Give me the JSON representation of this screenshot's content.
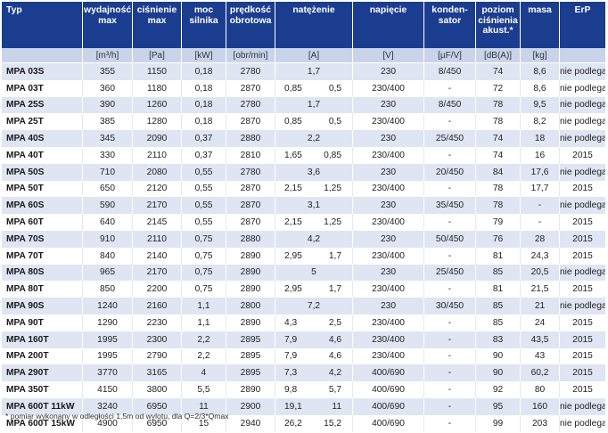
{
  "table": {
    "headers": {
      "typ": "Typ",
      "wydajnosc": "wydajność max",
      "cisnienie": "ciśnienie max",
      "moc": "moc silnika",
      "predkosc": "prędkość obrotowa",
      "natezenie": "natężenie",
      "napiecie": "napięcie",
      "kondensator": "konden-sator",
      "poziom": "poziom ciśnienia akust.*",
      "masa": "masa",
      "erp": "ErP"
    },
    "units": {
      "typ": "",
      "wydajnosc": "[m³/h]",
      "cisnienie": "[Pa]",
      "moc": "[kW]",
      "predkosc": "[obr/min]",
      "natezenie": "[A]",
      "napiecie": "[V]",
      "kondensator": "[µF/V]",
      "poziom": "[dB(A)]",
      "masa": "[kg]",
      "erp": ""
    },
    "rows": [
      {
        "typ": "MPA 03S",
        "wyd": "355",
        "cis": "1150",
        "moc": "0,18",
        "pred": "2780",
        "a1": "1,7",
        "a2": "",
        "nap": "230",
        "kon": "8/450",
        "poz": "74",
        "masa": "8,6",
        "erp": "nie podlega"
      },
      {
        "typ": "MPA 03T",
        "wyd": "360",
        "cis": "1180",
        "moc": "0,18",
        "pred": "2870",
        "a1": "0,85",
        "a2": "0,5",
        "nap": "230/400",
        "kon": "-",
        "poz": "72",
        "masa": "8,6",
        "erp": "nie podlega"
      },
      {
        "typ": "MPA 25S",
        "wyd": "390",
        "cis": "1260",
        "moc": "0,18",
        "pred": "2780",
        "a1": "1,7",
        "a2": "",
        "nap": "230",
        "kon": "8/450",
        "poz": "78",
        "masa": "9,5",
        "erp": "nie podlega"
      },
      {
        "typ": "MPA 25T",
        "wyd": "385",
        "cis": "1280",
        "moc": "0,18",
        "pred": "2870",
        "a1": "0,85",
        "a2": "0,5",
        "nap": "230/400",
        "kon": "-",
        "poz": "78",
        "masa": "8,2",
        "erp": "nie podlega"
      },
      {
        "typ": "MPA 40S",
        "wyd": "345",
        "cis": "2090",
        "moc": "0,37",
        "pred": "2880",
        "a1": "2,2",
        "a2": "",
        "nap": "230",
        "kon": "25/450",
        "poz": "74",
        "masa": "18",
        "erp": "nie podlega"
      },
      {
        "typ": "MPA 40T",
        "wyd": "330",
        "cis": "2110",
        "moc": "0,37",
        "pred": "2810",
        "a1": "1,65",
        "a2": "0,85",
        "nap": "230/400",
        "kon": "-",
        "poz": "74",
        "masa": "16",
        "erp": "2015"
      },
      {
        "typ": "MPA 50S",
        "wyd": "710",
        "cis": "2080",
        "moc": "0,55",
        "pred": "2780",
        "a1": "3,6",
        "a2": "",
        "nap": "230",
        "kon": "20/450",
        "poz": "84",
        "masa": "17,6",
        "erp": "nie podlega"
      },
      {
        "typ": "MPA 50T",
        "wyd": "650",
        "cis": "2120",
        "moc": "0,55",
        "pred": "2870",
        "a1": "2,15",
        "a2": "1,25",
        "nap": "230/400",
        "kon": "-",
        "poz": "78",
        "masa": "17,7",
        "erp": "2015"
      },
      {
        "typ": "MPA 60S",
        "wyd": "590",
        "cis": "2170",
        "moc": "0,55",
        "pred": "2870",
        "a1": "3,1",
        "a2": "",
        "nap": "230",
        "kon": "35/450",
        "poz": "78",
        "masa": "-",
        "erp": "nie podlega"
      },
      {
        "typ": "MPA 60T",
        "wyd": "640",
        "cis": "2145",
        "moc": "0,55",
        "pred": "2870",
        "a1": "2,15",
        "a2": "1,25",
        "nap": "230/400",
        "kon": "-",
        "poz": "79",
        "masa": "-",
        "erp": "2015"
      },
      {
        "typ": "MPA 70S",
        "wyd": "910",
        "cis": "2110",
        "moc": "0,75",
        "pred": "2880",
        "a1": "4,2",
        "a2": "",
        "nap": "230",
        "kon": "50/450",
        "poz": "76",
        "masa": "28",
        "erp": "2015"
      },
      {
        "typ": "MPA 70T",
        "wyd": "840",
        "cis": "2140",
        "moc": "0,75",
        "pred": "2890",
        "a1": "2,95",
        "a2": "1,7",
        "nap": "230/400",
        "kon": "-",
        "poz": "81",
        "masa": "24,3",
        "erp": "2015"
      },
      {
        "typ": "MPA 80S",
        "wyd": "965",
        "cis": "2170",
        "moc": "0,75",
        "pred": "2890",
        "a1": "5",
        "a2": "",
        "nap": "230",
        "kon": "25/450",
        "poz": "85",
        "masa": "20,5",
        "erp": "nie podlega"
      },
      {
        "typ": "MPA 80T",
        "wyd": "850",
        "cis": "2200",
        "moc": "0,75",
        "pred": "2890",
        "a1": "2,95",
        "a2": "1,7",
        "nap": "230/400",
        "kon": "-",
        "poz": "81",
        "masa": "21,5",
        "erp": "2015"
      },
      {
        "typ": "MPA 90S",
        "wyd": "1240",
        "cis": "2160",
        "moc": "1,1",
        "pred": "2800",
        "a1": "7,2",
        "a2": "",
        "nap": "230",
        "kon": "30/450",
        "poz": "85",
        "masa": "21",
        "erp": "nie podlega"
      },
      {
        "typ": "MPA 90T",
        "wyd": "1290",
        "cis": "2230",
        "moc": "1,1",
        "pred": "2890",
        "a1": "4,3",
        "a2": "2,5",
        "nap": "230/400",
        "kon": "-",
        "poz": "85",
        "masa": "24",
        "erp": "2015"
      },
      {
        "typ": "MPA 160T",
        "wyd": "1995",
        "cis": "2300",
        "moc": "2,2",
        "pred": "2895",
        "a1": "7,9",
        "a2": "4,6",
        "nap": "230/400",
        "kon": "-",
        "poz": "83",
        "masa": "43,5",
        "erp": "2015"
      },
      {
        "typ": "MPA 200T",
        "wyd": "1995",
        "cis": "2790",
        "moc": "2,2",
        "pred": "2895",
        "a1": "7,9",
        "a2": "4,6",
        "nap": "230/400",
        "kon": "-",
        "poz": "90",
        "masa": "43",
        "erp": "2015"
      },
      {
        "typ": "MPA 290T",
        "wyd": "3770",
        "cis": "3165",
        "moc": "4",
        "pred": "2895",
        "a1": "7,3",
        "a2": "4,2",
        "nap": "400/690",
        "kon": "-",
        "poz": "90",
        "masa": "60,2",
        "erp": "2015"
      },
      {
        "typ": "MPA 350T",
        "wyd": "4150",
        "cis": "3800",
        "moc": "5,5",
        "pred": "2890",
        "a1": "9,8",
        "a2": "5,7",
        "nap": "400/690",
        "kon": "-",
        "poz": "92",
        "masa": "80",
        "erp": "2015"
      },
      {
        "typ": "MPA 600T 11kW",
        "wyd": "3240",
        "cis": "6950",
        "moc": "11",
        "pred": "2900",
        "a1": "19,1",
        "a2": "11",
        "nap": "400/690",
        "kon": "-",
        "poz": "95",
        "masa": "160",
        "erp": "nie podlega"
      },
      {
        "typ": "MPA 600T 15kW",
        "wyd": "4900",
        "cis": "6950",
        "moc": "15",
        "pred": "2940",
        "a1": "26,2",
        "a2": "15,2",
        "nap": "400/690",
        "kon": "-",
        "poz": "99",
        "masa": "203",
        "erp": "nie podlega"
      }
    ]
  },
  "footnote": "* pomiar wykonany w odległości 1,5m od wylotu, dla Q=2/3*Qmax"
}
